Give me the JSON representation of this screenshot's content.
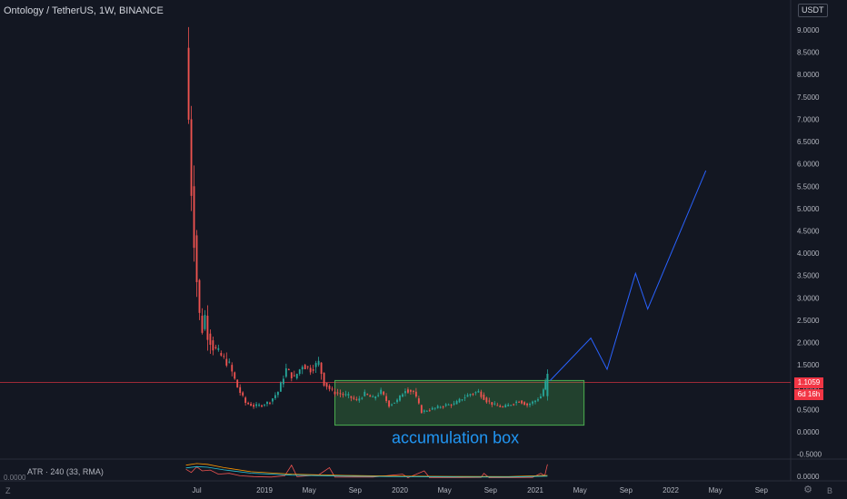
{
  "header": {
    "title": "Ontology / TetherUS, 1W, BINANCE",
    "currency": "USDT"
  },
  "price_tag": {
    "value": "1.1059",
    "countdown": "6d 16h"
  },
  "indicator": {
    "label": "ATR · 240 (33, RMA)",
    "left_tick": "0.0000",
    "right_tick": "0.0000"
  },
  "corners": {
    "left": "Z",
    "right": "B"
  },
  "icons": {
    "settings": "gear-icon"
  },
  "colors": {
    "background": "#131722",
    "up": "#26a69a",
    "down": "#ef5350",
    "projection": "#2962ff",
    "box_fill": "#4caf50",
    "box_border": "#4caf50",
    "annotation": "#2196f3",
    "price_line": "#f23645"
  },
  "chart_data": {
    "type": "candlestick",
    "title": "Ontology / TetherUS, 1W, BINANCE",
    "y_ticks": [
      "9.0000",
      "8.5000",
      "8.0000",
      "7.5000",
      "7.0000",
      "6.5000",
      "6.0000",
      "5.5000",
      "5.0000",
      "4.5000",
      "4.0000",
      "3.5000",
      "3.0000",
      "2.5000",
      "2.0000",
      "1.5000",
      "1.0000",
      "0.5000",
      "0.0000",
      "-0.5000"
    ],
    "y_range": [
      -0.6,
      9.6
    ],
    "x_ticks": [
      "Jul",
      "2019",
      "May",
      "Sep",
      "2020",
      "May",
      "Sep",
      "2021",
      "May",
      "Sep",
      "2022",
      "May",
      "Sep"
    ],
    "x_tick_dates": [
      2018.5,
      2019.0,
      2019.33,
      2019.67,
      2020.0,
      2020.33,
      2020.67,
      2021.0,
      2021.33,
      2021.67,
      2022.0,
      2022.33,
      2022.67
    ],
    "last_price": 1.1059,
    "price_series": [
      {
        "t": 2018.44,
        "v": 8.6
      },
      {
        "t": 2018.46,
        "v": 7.0
      },
      {
        "t": 2018.48,
        "v": 5.5
      },
      {
        "t": 2018.5,
        "v": 4.4
      },
      {
        "t": 2018.52,
        "v": 3.4
      },
      {
        "t": 2018.54,
        "v": 2.6
      },
      {
        "t": 2018.56,
        "v": 2.3
      },
      {
        "t": 2018.58,
        "v": 2.6
      },
      {
        "t": 2018.6,
        "v": 2.2
      },
      {
        "t": 2018.64,
        "v": 1.9
      },
      {
        "t": 2018.7,
        "v": 1.7
      },
      {
        "t": 2018.76,
        "v": 1.5
      },
      {
        "t": 2018.82,
        "v": 1.0
      },
      {
        "t": 2018.88,
        "v": 0.65
      },
      {
        "t": 2018.94,
        "v": 0.58
      },
      {
        "t": 2019.0,
        "v": 0.6
      },
      {
        "t": 2019.06,
        "v": 0.68
      },
      {
        "t": 2019.12,
        "v": 0.9
      },
      {
        "t": 2019.18,
        "v": 1.4
      },
      {
        "t": 2019.24,
        "v": 1.2
      },
      {
        "t": 2019.3,
        "v": 1.5
      },
      {
        "t": 2019.36,
        "v": 1.4
      },
      {
        "t": 2019.42,
        "v": 1.55
      },
      {
        "t": 2019.46,
        "v": 1.1
      },
      {
        "t": 2019.52,
        "v": 0.9
      },
      {
        "t": 2019.58,
        "v": 0.85
      },
      {
        "t": 2019.64,
        "v": 0.8
      },
      {
        "t": 2019.7,
        "v": 0.7
      },
      {
        "t": 2019.76,
        "v": 0.85
      },
      {
        "t": 2019.82,
        "v": 0.75
      },
      {
        "t": 2019.88,
        "v": 0.9
      },
      {
        "t": 2019.94,
        "v": 0.6
      },
      {
        "t": 2020.0,
        "v": 0.7
      },
      {
        "t": 2020.06,
        "v": 0.95
      },
      {
        "t": 2020.12,
        "v": 0.9
      },
      {
        "t": 2020.18,
        "v": 0.45
      },
      {
        "t": 2020.24,
        "v": 0.5
      },
      {
        "t": 2020.3,
        "v": 0.55
      },
      {
        "t": 2020.36,
        "v": 0.6
      },
      {
        "t": 2020.42,
        "v": 0.62
      },
      {
        "t": 2020.48,
        "v": 0.75
      },
      {
        "t": 2020.54,
        "v": 0.85
      },
      {
        "t": 2020.6,
        "v": 0.9
      },
      {
        "t": 2020.66,
        "v": 0.7
      },
      {
        "t": 2020.72,
        "v": 0.6
      },
      {
        "t": 2020.78,
        "v": 0.55
      },
      {
        "t": 2020.84,
        "v": 0.62
      },
      {
        "t": 2020.9,
        "v": 0.7
      },
      {
        "t": 2020.96,
        "v": 0.6
      },
      {
        "t": 2021.02,
        "v": 0.7
      },
      {
        "t": 2021.06,
        "v": 0.8
      },
      {
        "t": 2021.09,
        "v": 1.1
      }
    ],
    "projection": [
      {
        "t": 2021.11,
        "v": 1.15
      },
      {
        "t": 2021.41,
        "v": 2.1
      },
      {
        "t": 2021.53,
        "v": 1.4
      },
      {
        "t": 2021.74,
        "v": 3.55
      },
      {
        "t": 2021.83,
        "v": 2.75
      },
      {
        "t": 2022.26,
        "v": 5.85
      }
    ],
    "accumulation_box": {
      "t0": 2019.52,
      "t1": 2021.36,
      "v0": 0.15,
      "v1": 1.15
    },
    "annotations": [
      {
        "text": "accumulation box",
        "t": 2020.41,
        "v": -0.05
      }
    ],
    "indicator_series": {
      "name": "ATR · 240 (33, RMA)",
      "atr": [
        {
          "t": 2018.42,
          "v": 0.85
        },
        {
          "t": 2018.5,
          "v": 0.95
        },
        {
          "t": 2018.58,
          "v": 0.9
        },
        {
          "t": 2018.7,
          "v": 0.7
        },
        {
          "t": 2018.9,
          "v": 0.45
        },
        {
          "t": 2019.2,
          "v": 0.3
        },
        {
          "t": 2019.6,
          "v": 0.22
        },
        {
          "t": 2020.0,
          "v": 0.18
        },
        {
          "t": 2020.4,
          "v": 0.16
        },
        {
          "t": 2020.8,
          "v": 0.15
        },
        {
          "t": 2021.09,
          "v": 0.22
        }
      ],
      "tr": [
        {
          "t": 2018.42,
          "v": 0.6
        },
        {
          "t": 2018.46,
          "v": 0.4
        },
        {
          "t": 2018.5,
          "v": 0.75
        },
        {
          "t": 2018.54,
          "v": 0.5
        },
        {
          "t": 2018.6,
          "v": 0.55
        },
        {
          "t": 2018.66,
          "v": 0.3
        },
        {
          "t": 2018.74,
          "v": 0.35
        },
        {
          "t": 2018.82,
          "v": 0.2
        },
        {
          "t": 2018.92,
          "v": 0.15
        },
        {
          "t": 2019.05,
          "v": 0.12
        },
        {
          "t": 2019.15,
          "v": 0.2
        },
        {
          "t": 2019.2,
          "v": 0.85
        },
        {
          "t": 2019.24,
          "v": 0.15
        },
        {
          "t": 2019.4,
          "v": 0.25
        },
        {
          "t": 2019.48,
          "v": 0.7
        },
        {
          "t": 2019.52,
          "v": 0.12
        },
        {
          "t": 2019.8,
          "v": 0.12
        },
        {
          "t": 2020.02,
          "v": 0.3
        },
        {
          "t": 2020.06,
          "v": 0.08
        },
        {
          "t": 2020.18,
          "v": 0.5
        },
        {
          "t": 2020.22,
          "v": 0.08
        },
        {
          "t": 2020.6,
          "v": 0.1
        },
        {
          "t": 2020.62,
          "v": 0.35
        },
        {
          "t": 2020.66,
          "v": 0.08
        },
        {
          "t": 2020.98,
          "v": 0.1
        },
        {
          "t": 2021.04,
          "v": 0.35
        },
        {
          "t": 2021.07,
          "v": 0.2
        },
        {
          "t": 2021.09,
          "v": 0.9
        }
      ]
    }
  }
}
